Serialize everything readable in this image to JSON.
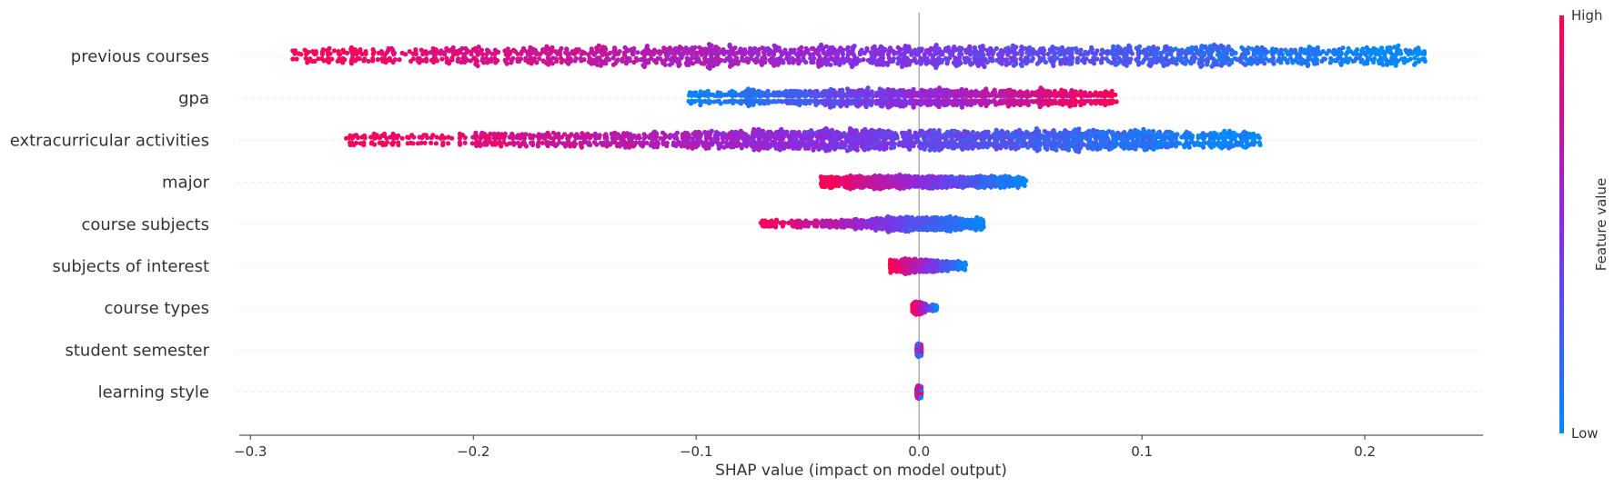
{
  "chart_data": {
    "type": "scatter",
    "subtype": "shap-beeswarm",
    "xlabel": "SHAP value (impact on model output)",
    "xlim": [
      -0.305,
      0.253
    ],
    "xticks": [
      -0.3,
      -0.2,
      -0.1,
      0.0,
      0.1,
      0.2
    ],
    "xtick_labels": [
      "−0.3",
      "−0.2",
      "−0.1",
      "0.0",
      "0.1",
      "0.2"
    ],
    "grid": false,
    "colorbar": {
      "label": "Feature value",
      "high_label": "High",
      "low_label": "Low",
      "high_color": "#ff0052",
      "mid_color": "#8a2be2",
      "low_color": "#008bfb"
    },
    "features": [
      {
        "name": "previous courses",
        "min": -0.281,
        "max": 0.227,
        "high_side": "negative",
        "spread": 0.95,
        "outliers": [
          -0.281,
          -0.253,
          -0.245,
          -0.238,
          -0.228,
          -0.218,
          -0.212,
          -0.205,
          -0.198,
          -0.19,
          -0.183,
          0.21,
          0.215,
          0.227
        ]
      },
      {
        "name": "gpa",
        "min": -0.104,
        "max": 0.089,
        "high_side": "positive",
        "spread": 0.75,
        "outliers": []
      },
      {
        "name": "extracurricular activities",
        "min": -0.257,
        "max": 0.153,
        "high_side": "negative",
        "spread": 0.9,
        "outliers": [
          -0.257,
          -0.166,
          -0.164,
          -0.13,
          -0.115,
          -0.084,
          -0.08,
          -0.075,
          -0.072,
          -0.068,
          0.095,
          0.097,
          0.107,
          0.153
        ]
      },
      {
        "name": "major",
        "min": -0.044,
        "max": 0.048,
        "high_side": "negative",
        "spread": 0.55,
        "outliers": [
          -0.044,
          -0.042,
          0.046,
          0.048
        ]
      },
      {
        "name": "course subjects",
        "min": -0.071,
        "max": 0.029,
        "high_side": "negative",
        "spread": 0.6,
        "outliers": [
          -0.071,
          -0.033,
          -0.03
        ]
      },
      {
        "name": "subjects of interest",
        "min": -0.013,
        "max": 0.021,
        "high_side": "negative",
        "spread": 0.6,
        "outliers": [
          0.018,
          0.021
        ]
      },
      {
        "name": "course types",
        "min": -0.003,
        "max": 0.008,
        "high_side": "negative",
        "spread": 0.5,
        "outliers": [
          0.006,
          0.008
        ]
      },
      {
        "name": "student semester",
        "min": -0.001,
        "max": 0.001,
        "high_side": "mixed",
        "spread": 0.5,
        "outliers": []
      },
      {
        "name": "learning style",
        "min": -0.001,
        "max": 0.001,
        "high_side": "mixed",
        "spread": 0.5,
        "outliers": []
      }
    ]
  }
}
